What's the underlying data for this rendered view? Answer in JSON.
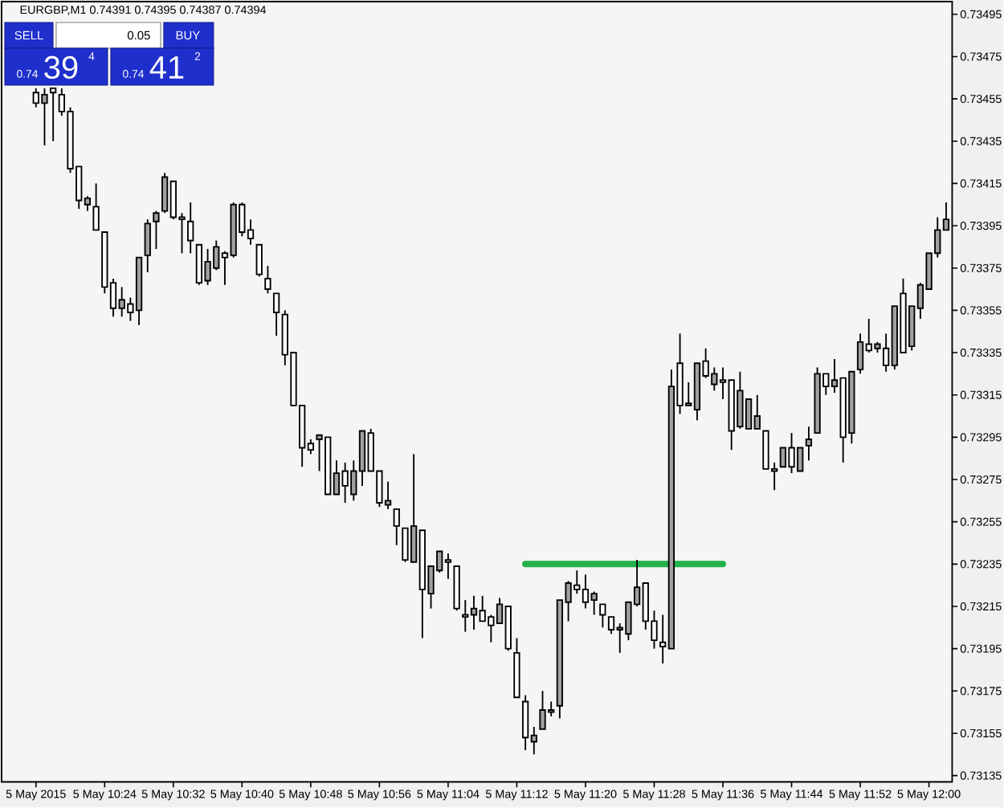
{
  "chart_data": {
    "type": "candlestick",
    "title": "EURGBP,M1  0.74391 0.74395 0.74387 0.74394",
    "annotations": [
      "SELL",
      "0.05",
      "BUY",
      "0.74",
      "39",
      "4",
      "0.74",
      "41",
      "2"
    ],
    "categories": [
      "5 May 2015",
      null,
      null,
      null,
      null,
      null,
      null,
      null,
      "5 May 10:24",
      null,
      null,
      null,
      null,
      null,
      null,
      null,
      "5 May 10:32",
      null,
      null,
      null,
      null,
      null,
      null,
      null,
      "5 May 10:40",
      null,
      null,
      null,
      null,
      null,
      null,
      null,
      "5 May 10:48",
      null,
      null,
      null,
      null,
      null,
      null,
      null,
      "5 May 10:56",
      null,
      null,
      null,
      null,
      null,
      null,
      null,
      "5 May 11:04",
      null,
      null,
      null,
      null,
      null,
      null,
      null,
      "5 May 11:12",
      null,
      null,
      null,
      null,
      null,
      null,
      null,
      "5 May 11:20",
      null,
      null,
      null,
      null,
      null,
      null,
      null,
      "5 May 11:28",
      null,
      null,
      null,
      null,
      null,
      null,
      null,
      "5 May 11:36",
      null,
      null,
      null,
      null,
      null,
      null,
      null,
      "5 May 11:44",
      null,
      null,
      null,
      null,
      null,
      null,
      null,
      "5 May 11:52",
      null,
      null,
      null,
      null,
      null,
      null,
      null,
      "5 May 12:00",
      null,
      null
    ],
    "ohlc": [
      [
        0.73458,
        0.7346,
        0.73451,
        0.73453
      ],
      [
        0.73453,
        0.7346,
        0.73433,
        0.73457
      ],
      [
        0.7346,
        0.7346,
        0.73435,
        0.73458
      ],
      [
        0.73457,
        0.7346,
        0.73447,
        0.73449
      ],
      [
        0.73449,
        0.73451,
        0.7342,
        0.73422
      ],
      [
        0.73423,
        0.73423,
        0.73403,
        0.73407
      ],
      [
        0.73405,
        0.73409,
        0.73402,
        0.73408
      ],
      [
        0.73404,
        0.73415,
        0.73393,
        0.73393
      ],
      [
        0.73392,
        0.73392,
        0.73363,
        0.73366
      ],
      [
        0.73368,
        0.7337,
        0.73352,
        0.73356
      ],
      [
        0.73356,
        0.73366,
        0.73352,
        0.7336
      ],
      [
        0.73358,
        0.73361,
        0.7335,
        0.73354
      ],
      [
        0.73355,
        0.7338,
        0.73348,
        0.7338
      ],
      [
        0.73381,
        0.73398,
        0.73373,
        0.73396
      ],
      [
        0.73397,
        0.73402,
        0.73384,
        0.73401
      ],
      [
        0.73402,
        0.7342,
        0.73401,
        0.73418
      ],
      [
        0.73416,
        0.73416,
        0.73398,
        0.73399
      ],
      [
        0.73399,
        0.73401,
        0.73382,
        0.73398
      ],
      [
        0.73397,
        0.73406,
        0.73382,
        0.73388
      ],
      [
        0.73386,
        0.73386,
        0.73367,
        0.73368
      ],
      [
        0.73369,
        0.73384,
        0.73367,
        0.73378
      ],
      [
        0.73375,
        0.73388,
        0.73374,
        0.73385
      ],
      [
        0.73382,
        0.73383,
        0.73367,
        0.7338
      ],
      [
        0.73381,
        0.73406,
        0.7338,
        0.73405
      ],
      [
        0.73405,
        0.73406,
        0.7339,
        0.73392
      ],
      [
        0.73393,
        0.73398,
        0.73386,
        0.73389
      ],
      [
        0.73386,
        0.73386,
        0.73371,
        0.73372
      ],
      [
        0.7337,
        0.73376,
        0.73363,
        0.73365
      ],
      [
        0.73363,
        0.73363,
        0.73343,
        0.73354
      ],
      [
        0.73353,
        0.73355,
        0.73329,
        0.73334
      ],
      [
        0.73335,
        0.73335,
        0.7331,
        0.7331
      ],
      [
        0.7331,
        0.7331,
        0.73281,
        0.7329
      ],
      [
        0.73292,
        0.73294,
        0.73287,
        0.73289
      ],
      [
        0.73294,
        0.73296,
        0.73279,
        0.73296
      ],
      [
        0.73295,
        0.73295,
        0.73268,
        0.73268
      ],
      [
        0.73268,
        0.73284,
        0.73268,
        0.73278
      ],
      [
        0.73279,
        0.73283,
        0.73264,
        0.73272
      ],
      [
        0.73268,
        0.73284,
        0.73265,
        0.73279
      ],
      [
        0.73279,
        0.73298,
        0.73272,
        0.73298
      ],
      [
        0.73297,
        0.73299,
        0.73279,
        0.73279
      ],
      [
        0.73279,
        0.73279,
        0.73262,
        0.73264
      ],
      [
        0.73263,
        0.73274,
        0.73261,
        0.73265
      ],
      [
        0.73261,
        0.73261,
        0.73244,
        0.73253
      ],
      [
        0.73252,
        0.73252,
        0.73236,
        0.73237
      ],
      [
        0.73236,
        0.73287,
        0.73236,
        0.73253
      ],
      [
        0.73251,
        0.73251,
        0.732,
        0.73223
      ],
      [
        0.73221,
        0.73234,
        0.73214,
        0.73234
      ],
      [
        0.73232,
        0.73241,
        0.73231,
        0.73241
      ],
      [
        0.73237,
        0.7324,
        0.73228,
        0.73236
      ],
      [
        0.73234,
        0.73234,
        0.73213,
        0.73214
      ],
      [
        0.73211,
        0.73218,
        0.73203,
        0.7321
      ],
      [
        0.73211,
        0.7322,
        0.73204,
        0.73214
      ],
      [
        0.73213,
        0.7322,
        0.73208,
        0.73208
      ],
      [
        0.7321,
        0.73211,
        0.73198,
        0.73206
      ],
      [
        0.73207,
        0.73219,
        0.73207,
        0.73216
      ],
      [
        0.73215,
        0.73215,
        0.73194,
        0.73195
      ],
      [
        0.73193,
        0.732,
        0.73172,
        0.73172
      ],
      [
        0.7317,
        0.73173,
        0.73147,
        0.73153
      ],
      [
        0.73151,
        0.73158,
        0.73145,
        0.73154
      ],
      [
        0.73157,
        0.73175,
        0.73157,
        0.73166
      ],
      [
        0.73165,
        0.7317,
        0.73163,
        0.73166
      ],
      [
        0.73168,
        0.73218,
        0.73162,
        0.73218
      ],
      [
        0.73217,
        0.73227,
        0.73208,
        0.73226
      ],
      [
        0.73225,
        0.73232,
        0.73221,
        0.73223
      ],
      [
        0.73223,
        0.7323,
        0.73214,
        0.73217
      ],
      [
        0.73218,
        0.73222,
        0.73211,
        0.73221
      ],
      [
        0.73216,
        0.73216,
        0.73205,
        0.73211
      ],
      [
        0.7321,
        0.7321,
        0.73202,
        0.73204
      ],
      [
        0.73204,
        0.73207,
        0.73193,
        0.73205
      ],
      [
        0.73202,
        0.73217,
        0.73199,
        0.73217
      ],
      [
        0.73216,
        0.73237,
        0.73215,
        0.73224
      ],
      [
        0.73226,
        0.73226,
        0.73204,
        0.73208
      ],
      [
        0.73208,
        0.73213,
        0.73195,
        0.73199
      ],
      [
        0.73198,
        0.73211,
        0.73188,
        0.73196
      ],
      [
        0.73195,
        0.73327,
        0.73195,
        0.73319
      ],
      [
        0.7333,
        0.73344,
        0.73306,
        0.7331
      ],
      [
        0.7331,
        0.73321,
        0.7331,
        0.73311
      ],
      [
        0.73308,
        0.7333,
        0.73303,
        0.7333
      ],
      [
        0.73331,
        0.73337,
        0.73323,
        0.73324
      ],
      [
        0.7332,
        0.73328,
        0.73317,
        0.73325
      ],
      [
        0.73322,
        0.73328,
        0.73313,
        0.73321
      ],
      [
        0.73322,
        0.73322,
        0.73289,
        0.73298
      ],
      [
        0.733,
        0.73326,
        0.73299,
        0.73317
      ],
      [
        0.73299,
        0.73313,
        0.73299,
        0.73313
      ],
      [
        0.73299,
        0.73315,
        0.73299,
        0.73305
      ],
      [
        0.73298,
        0.73298,
        0.7328,
        0.7328
      ],
      [
        0.7328,
        0.73283,
        0.7327,
        0.73279
      ],
      [
        0.73281,
        0.7329,
        0.73281,
        0.7329
      ],
      [
        0.7329,
        0.73297,
        0.73278,
        0.73281
      ],
      [
        0.73279,
        0.7329,
        0.73279,
        0.7329
      ],
      [
        0.73291,
        0.733,
        0.73284,
        0.73294
      ],
      [
        0.73297,
        0.73328,
        0.73297,
        0.73325
      ],
      [
        0.73325,
        0.73325,
        0.73315,
        0.73319
      ],
      [
        0.73319,
        0.73332,
        0.73316,
        0.73322
      ],
      [
        0.73323,
        0.73323,
        0.73283,
        0.73295
      ],
      [
        0.73297,
        0.73326,
        0.73292,
        0.73326
      ],
      [
        0.73327,
        0.73344,
        0.73325,
        0.7334
      ],
      [
        0.73339,
        0.73351,
        0.73335,
        0.73336
      ],
      [
        0.73337,
        0.7334,
        0.73335,
        0.73339
      ],
      [
        0.73337,
        0.73344,
        0.73326,
        0.73329
      ],
      [
        0.73329,
        0.73357,
        0.73327,
        0.73357
      ],
      [
        0.73363,
        0.7337,
        0.73335,
        0.73335
      ],
      [
        0.73338,
        0.73357,
        0.73336,
        0.73357
      ],
      [
        0.73356,
        0.73368,
        0.73351,
        0.73367
      ],
      [
        0.73365,
        0.73382,
        0.73365,
        0.73382
      ],
      [
        0.73382,
        0.73399,
        0.7338,
        0.73393
      ],
      [
        0.73393,
        0.73406,
        0.73393,
        0.73398
      ]
    ],
    "colors": [
      "#ffffff",
      "#a0a0a0",
      "#ffffff",
      "#ffffff",
      "#ffffff",
      "#ffffff",
      "#a0a0a0",
      "#ffffff",
      "#ffffff",
      "#ffffff",
      "#a0a0a0",
      "#ffffff",
      "#a0a0a0",
      "#a0a0a0",
      "#a0a0a0",
      "#a0a0a0",
      "#ffffff",
      "#ffffff",
      "#ffffff",
      "#ffffff",
      "#a0a0a0",
      "#a0a0a0",
      "#ffffff",
      "#a0a0a0",
      "#ffffff",
      "#ffffff",
      "#ffffff",
      "#ffffff",
      "#ffffff",
      "#ffffff",
      "#ffffff",
      "#ffffff",
      "#ffffff",
      "#a0a0a0",
      "#ffffff",
      "#a0a0a0",
      "#ffffff",
      "#a0a0a0",
      "#a0a0a0",
      "#ffffff",
      "#ffffff",
      "#a0a0a0",
      "#ffffff",
      "#ffffff",
      "#a0a0a0",
      "#ffffff",
      "#a0a0a0",
      "#a0a0a0",
      "#ffffff",
      "#ffffff",
      "#ffffff",
      "#a0a0a0",
      "#ffffff",
      "#ffffff",
      "#a0a0a0",
      "#ffffff",
      "#ffffff",
      "#ffffff",
      "#a0a0a0",
      "#a0a0a0",
      "#a0a0a0",
      "#a0a0a0",
      "#a0a0a0",
      "#ffffff",
      "#ffffff",
      "#a0a0a0",
      "#ffffff",
      "#ffffff",
      "#a0a0a0",
      "#a0a0a0",
      "#a0a0a0",
      "#ffffff",
      "#ffffff",
      "#ffffff",
      "#a0a0a0",
      "#ffffff",
      "#a0a0a0",
      "#a0a0a0",
      "#ffffff",
      "#a0a0a0",
      "#ffffff",
      "#ffffff",
      "#a0a0a0",
      "#a0a0a0",
      "#a0a0a0",
      "#ffffff",
      "#ffffff",
      "#a0a0a0",
      "#ffffff",
      "#a0a0a0",
      "#a0a0a0",
      "#a0a0a0",
      "#ffffff",
      "#a0a0a0",
      "#ffffff",
      "#a0a0a0",
      "#a0a0a0",
      "#ffffff",
      "#a0a0a0",
      "#ffffff",
      "#a0a0a0",
      "#ffffff",
      "#a0a0a0",
      "#a0a0a0",
      "#a0a0a0",
      "#a0a0a0",
      "#a0a0a0"
    ],
    "series": [
      {
        "type": "line",
        "color": "#22b14c",
        "values": [
          null,
          null,
          null,
          null,
          null,
          null,
          null,
          null,
          null,
          null,
          null,
          null,
          null,
          null,
          null,
          null,
          null,
          null,
          null,
          null,
          null,
          null,
          null,
          null,
          null,
          null,
          null,
          null,
          null,
          null,
          null,
          null,
          null,
          null,
          null,
          null,
          null,
          null,
          null,
          null,
          null,
          null,
          null,
          null,
          null,
          null,
          null,
          null,
          null,
          null,
          null,
          null,
          null,
          null,
          null,
          null,
          null,
          0.73235,
          0.73235,
          0.73235,
          0.73235,
          0.73235,
          0.73235,
          0.73235,
          0.73235,
          0.73235,
          0.73235,
          0.73235,
          0.73235,
          0.73235,
          0.73235,
          0.73235,
          0.73235,
          0.73235,
          0.73235,
          0.73235,
          0.73235,
          0.73235,
          0.73235,
          0.73235,
          0.73235,
          null,
          null,
          null,
          null,
          null,
          null,
          null,
          null,
          null,
          null,
          null,
          null,
          null,
          null,
          null,
          null,
          null,
          null,
          null,
          null,
          null,
          null,
          null,
          null,
          null,
          null
        ]
      }
    ],
    "ylim": [
      0.73132,
      0.73501
    ],
    "yticks": [
      0.73135,
      0.73155,
      0.73175,
      0.73195,
      0.73215,
      0.73235,
      0.73255,
      0.73275,
      0.73295,
      0.73315,
      0.73335,
      0.73355,
      0.73375,
      0.73395,
      0.73415,
      0.73435,
      0.73455,
      0.73475,
      0.73495
    ]
  }
}
